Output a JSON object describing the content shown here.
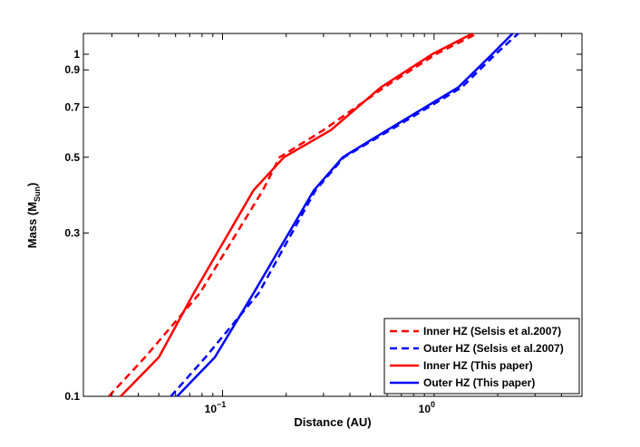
{
  "chart_data": {
    "type": "line",
    "xlabel": "Distance (AU)",
    "ylabel": "Mass (M",
    "ylabel_sub": "Sun",
    "ylabel_close": ")",
    "xscale": "log",
    "yscale": "log",
    "xlim": [
      0.022,
      5.0
    ],
    "ylim": [
      0.1,
      1.15
    ],
    "grid": false,
    "legend_position": "bottom-right",
    "x_tick_labels": [
      {
        "value": 0.1,
        "base": "10",
        "exp": "−1"
      },
      {
        "value": 1.0,
        "base": "10",
        "exp": "0"
      }
    ],
    "y_ticks": [
      {
        "value": 0.1,
        "label": "0.1"
      },
      {
        "value": 0.3,
        "label": "0.3"
      },
      {
        "value": 0.5,
        "label": "0.5"
      },
      {
        "value": 0.7,
        "label": "0.7"
      },
      {
        "value": 0.9,
        "label": "0.9"
      },
      {
        "value": 1.0,
        "label": "1"
      }
    ],
    "series": [
      {
        "name": "Inner HZ (Selsis et al.2007)",
        "color": "#ff0000",
        "dash": "dashed",
        "points": [
          [
            0.029,
            0.1
          ],
          [
            0.043,
            0.13
          ],
          [
            0.078,
            0.2
          ],
          [
            0.155,
            0.4
          ],
          [
            0.186,
            0.5
          ],
          [
            0.3,
            0.6
          ],
          [
            0.58,
            0.8
          ],
          [
            1.02,
            1.0
          ],
          [
            1.6,
            1.15
          ]
        ]
      },
      {
        "name": "Outer HZ (Selsis et al.2007)",
        "color": "#0000ff",
        "dash": "dashed",
        "points": [
          [
            0.057,
            0.1
          ],
          [
            0.083,
            0.13
          ],
          [
            0.148,
            0.2
          ],
          [
            0.275,
            0.4
          ],
          [
            0.375,
            0.5
          ],
          [
            0.62,
            0.6
          ],
          [
            1.35,
            0.8
          ],
          [
            1.95,
            1.0
          ],
          [
            2.5,
            1.15
          ]
        ]
      },
      {
        "name": "Inner HZ (This paper)",
        "color": "#ff0000",
        "dash": "solid",
        "points": [
          [
            0.033,
            0.1
          ],
          [
            0.05,
            0.13
          ],
          [
            0.073,
            0.2
          ],
          [
            0.14,
            0.4
          ],
          [
            0.195,
            0.5
          ],
          [
            0.325,
            0.6
          ],
          [
            0.56,
            0.8
          ],
          [
            0.98,
            1.0
          ],
          [
            1.52,
            1.15
          ]
        ]
      },
      {
        "name": "Outer HZ (This paper)",
        "color": "#0000ff",
        "dash": "solid",
        "points": [
          [
            0.061,
            0.1
          ],
          [
            0.092,
            0.13
          ],
          [
            0.14,
            0.2
          ],
          [
            0.27,
            0.4
          ],
          [
            0.37,
            0.5
          ],
          [
            0.6,
            0.6
          ],
          [
            1.3,
            0.8
          ],
          [
            1.88,
            1.0
          ],
          [
            2.35,
            1.15
          ]
        ]
      }
    ]
  }
}
